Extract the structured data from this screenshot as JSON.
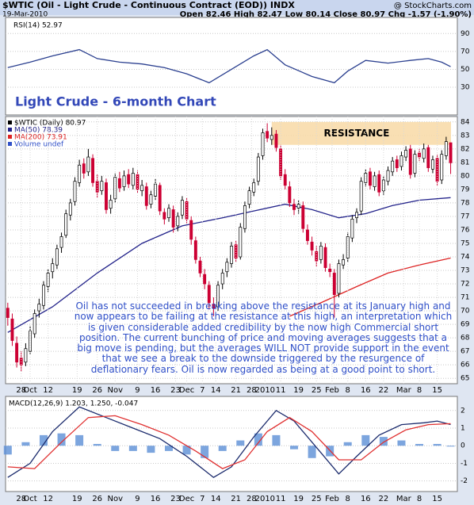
{
  "header": {
    "symbol": "$WTIC (Oil - Light Crude - Continuous Contract (EOD)) INDX",
    "source": "@ StockCharts.com",
    "date": "19-Mar-2010",
    "quote": "Open 82.46 High 82.47 Low 80.14 Close 80.97 Chg -1.57 (-1.90%)",
    "chart_title": "Light Crude - 6-month Chart",
    "commentary": "Oil has not succeeded in breaking above the resistance at its January high and now appears to be failing at the resistance at this high, an interpretation which is given considerable added credibility by the now high Commercial short position. The current bunching of price and moving averages suggests that a big move is pending, but the averages WILL NOT provide support in the event that we see a break to the downside triggered by the resurgence of deflationary fears. Oil is now regarded as being at a good point to short."
  },
  "chart_data": [
    {
      "type": "line",
      "title": "RSI(14) 52.97",
      "xlim": [
        -0.5,
        100.5
      ],
      "ylim": [
        -1,
        108
      ],
      "yticks": [
        30,
        50,
        70,
        90
      ],
      "grid": true,
      "series": [
        {
          "color": "#2a3f8f",
          "x": [
            0,
            5,
            10,
            16,
            20,
            25,
            30,
            35,
            40,
            45,
            50,
            55,
            58,
            62,
            68,
            73,
            76,
            80,
            85,
            90,
            94,
            97,
            99
          ],
          "values": [
            52,
            58,
            65,
            72,
            62,
            58,
            56,
            52,
            45,
            35,
            50,
            65,
            72,
            55,
            42,
            35,
            48,
            60,
            57,
            60,
            62,
            58,
            52.97
          ]
        }
      ]
    },
    {
      "type": "candlestick",
      "xlim": [
        -0.5,
        100.5
      ],
      "ylim": [
        64.6,
        84.4
      ],
      "yticks": [
        65,
        66,
        67,
        68,
        69,
        70,
        71,
        72,
        73,
        74,
        75,
        76,
        77,
        78,
        79,
        80,
        81,
        82,
        83,
        84
      ],
      "grid": true,
      "xticks": [
        {
          "value": 3,
          "label": "28"
        },
        {
          "value": 5,
          "label": "Oct"
        },
        {
          "value": 9,
          "label": "12"
        },
        {
          "value": 15.5,
          "label": "19"
        },
        {
          "value": 20,
          "label": "26"
        },
        {
          "value": 24,
          "label": "Nov"
        },
        {
          "value": 29,
          "label": "9"
        },
        {
          "value": 33,
          "label": "16"
        },
        {
          "value": 37.5,
          "label": "23"
        },
        {
          "value": 40,
          "label": "Dec"
        },
        {
          "value": 43.5,
          "label": "7"
        },
        {
          "value": 46.5,
          "label": "14"
        },
        {
          "value": 51,
          "label": "21"
        },
        {
          "value": 54.5,
          "label": "28"
        },
        {
          "value": 57.5,
          "label": "2010"
        },
        {
          "value": 61,
          "label": "11"
        },
        {
          "value": 65,
          "label": "19"
        },
        {
          "value": 69,
          "label": "25"
        },
        {
          "value": 72.5,
          "label": "Feb"
        },
        {
          "value": 76,
          "label": "8"
        },
        {
          "value": 80,
          "label": "16"
        },
        {
          "value": 84,
          "label": "22"
        },
        {
          "value": 88.5,
          "label": "Mar"
        },
        {
          "value": 92,
          "label": "8"
        },
        {
          "value": 96,
          "label": "15"
        }
      ],
      "candle_name": "$WTIC (Daily) 80.97",
      "up_color": "#000000",
      "down_color": "#cc0033",
      "volume_label": "Volume undef",
      "resistance": {
        "label": "RESISTANCE",
        "start": 59,
        "low": 82.3,
        "high": 84
      },
      "candles": [
        [
          70.2,
          70.6,
          68.9,
          69.5
        ],
        [
          69.4,
          69.8,
          67.4,
          67.8
        ],
        [
          67.6,
          68.1,
          65.8,
          66.2
        ],
        [
          66.5,
          67.0,
          65.5,
          66.0
        ],
        [
          66.2,
          67.6,
          65.9,
          67.2
        ],
        [
          67.0,
          68.9,
          66.8,
          68.5
        ],
        [
          68.3,
          70.1,
          68.0,
          69.8
        ],
        [
          70.0,
          70.9,
          69.5,
          70.5
        ],
        [
          70.4,
          72.2,
          70.1,
          71.9
        ],
        [
          71.8,
          73.1,
          71.4,
          72.8
        ],
        [
          72.9,
          73.9,
          72.4,
          73.5
        ],
        [
          73.4,
          74.9,
          73.1,
          74.6
        ],
        [
          74.7,
          75.8,
          74.3,
          75.5
        ],
        [
          75.6,
          77.5,
          75.4,
          77.2
        ],
        [
          77.1,
          78.3,
          76.7,
          78.0
        ],
        [
          78.1,
          79.9,
          77.8,
          79.6
        ],
        [
          79.5,
          81.2,
          79.2,
          80.8
        ],
        [
          80.9,
          81.3,
          79.8,
          80.2
        ],
        [
          80.3,
          82.0,
          80.0,
          81.4
        ],
        [
          81.3,
          81.6,
          79.2,
          79.5
        ],
        [
          79.6,
          80.1,
          78.4,
          78.8
        ],
        [
          78.9,
          80.0,
          78.6,
          79.6
        ],
        [
          79.5,
          79.8,
          77.2,
          77.5
        ],
        [
          77.6,
          78.6,
          77.2,
          78.2
        ],
        [
          78.3,
          80.2,
          78.0,
          79.9
        ],
        [
          79.8,
          80.3,
          78.8,
          79.1
        ],
        [
          79.2,
          80.4,
          78.9,
          80.0
        ],
        [
          80.1,
          80.5,
          79.1,
          79.4
        ],
        [
          79.3,
          80.6,
          79.0,
          80.2
        ],
        [
          80.1,
          80.4,
          78.7,
          79.0
        ],
        [
          78.9,
          79.7,
          78.5,
          79.3
        ],
        [
          79.2,
          79.5,
          77.5,
          77.8
        ],
        [
          77.9,
          78.9,
          77.6,
          78.6
        ],
        [
          78.5,
          79.8,
          78.2,
          79.4
        ],
        [
          79.3,
          79.5,
          77.1,
          77.4
        ],
        [
          77.3,
          77.6,
          76.4,
          76.8
        ],
        [
          76.9,
          77.9,
          76.6,
          77.6
        ],
        [
          77.5,
          77.8,
          75.8,
          76.2
        ],
        [
          76.3,
          77.3,
          75.9,
          77.0
        ],
        [
          77.1,
          78.5,
          76.8,
          78.2
        ],
        [
          78.1,
          78.4,
          76.5,
          76.8
        ],
        [
          76.7,
          77.0,
          74.9,
          75.3
        ],
        [
          75.2,
          75.5,
          73.5,
          73.8
        ],
        [
          73.7,
          74.0,
          72.5,
          72.8
        ],
        [
          72.7,
          73.1,
          71.6,
          72.0
        ],
        [
          71.9,
          72.2,
          70.1,
          70.6
        ],
        [
          70.5,
          71.0,
          69.6,
          70.2
        ],
        [
          70.3,
          72.2,
          70.0,
          71.9
        ],
        [
          72.0,
          73.1,
          71.6,
          72.8
        ],
        [
          72.9,
          73.9,
          72.5,
          73.6
        ],
        [
          73.5,
          75.1,
          73.2,
          74.8
        ],
        [
          74.9,
          75.2,
          73.6,
          73.9
        ],
        [
          74.0,
          76.5,
          73.8,
          76.2
        ],
        [
          76.1,
          78.1,
          75.8,
          77.8
        ],
        [
          77.9,
          79.2,
          77.6,
          78.9
        ],
        [
          78.8,
          79.8,
          78.5,
          79.5
        ],
        [
          79.6,
          81.7,
          79.3,
          81.4
        ],
        [
          81.5,
          83.5,
          81.2,
          83.2
        ],
        [
          83.3,
          83.9,
          82.5,
          82.8
        ],
        [
          82.7,
          83.6,
          82.3,
          83.0
        ],
        [
          83.1,
          83.4,
          81.8,
          82.1
        ],
        [
          82.0,
          82.3,
          79.7,
          80.0
        ],
        [
          80.1,
          80.5,
          79.0,
          79.3
        ],
        [
          79.2,
          79.6,
          77.7,
          78.0
        ],
        [
          77.9,
          78.3,
          77.1,
          77.5
        ],
        [
          77.6,
          78.2,
          77.2,
          77.9
        ],
        [
          77.8,
          78.1,
          75.8,
          76.1
        ],
        [
          76.0,
          76.4,
          74.9,
          75.2
        ],
        [
          75.1,
          75.5,
          74.1,
          74.5
        ],
        [
          74.4,
          74.8,
          73.3,
          73.7
        ],
        [
          73.8,
          75.1,
          73.5,
          74.8
        ],
        [
          74.7,
          75.0,
          72.9,
          73.2
        ],
        [
          73.1,
          73.5,
          72.5,
          72.9
        ],
        [
          72.8,
          73.1,
          69.5,
          71.2
        ],
        [
          71.3,
          73.8,
          71.0,
          73.5
        ],
        [
          73.4,
          74.2,
          73.1,
          73.8
        ],
        [
          73.9,
          75.8,
          73.6,
          75.5
        ],
        [
          75.4,
          77.1,
          75.1,
          76.8
        ],
        [
          76.9,
          77.6,
          76.5,
          77.3
        ],
        [
          77.4,
          79.9,
          77.1,
          79.6
        ],
        [
          79.5,
          80.5,
          79.2,
          80.2
        ],
        [
          80.3,
          80.6,
          79.0,
          79.3
        ],
        [
          79.2,
          80.3,
          78.9,
          80.0
        ],
        [
          80.1,
          80.4,
          78.5,
          78.8
        ],
        [
          78.9,
          80.0,
          78.6,
          79.7
        ],
        [
          79.6,
          80.7,
          79.3,
          80.4
        ],
        [
          80.3,
          81.4,
          80.0,
          81.1
        ],
        [
          81.2,
          81.5,
          80.3,
          80.6
        ],
        [
          80.7,
          81.8,
          80.4,
          81.5
        ],
        [
          81.4,
          82.2,
          81.1,
          81.9
        ],
        [
          82.0,
          82.3,
          79.8,
          80.1
        ],
        [
          80.2,
          81.9,
          79.9,
          81.6
        ],
        [
          81.7,
          82.0,
          81.1,
          81.4
        ],
        [
          81.3,
          82.4,
          81.0,
          82.0
        ],
        [
          82.1,
          82.3,
          80.3,
          80.6
        ],
        [
          80.5,
          81.5,
          80.2,
          81.2
        ],
        [
          81.3,
          81.6,
          79.3,
          79.6
        ],
        [
          79.7,
          81.9,
          79.4,
          81.6
        ],
        [
          81.5,
          82.9,
          81.2,
          82.54
        ],
        [
          82.46,
          82.47,
          80.14,
          80.97
        ]
      ],
      "series": [
        {
          "name": "MA(50) 78.39",
          "color": "#22228a",
          "x": [
            0,
            10,
            20,
            30,
            39,
            48,
            55,
            62,
            68,
            74,
            80,
            86,
            92,
            99
          ],
          "values": [
            68.4,
            70.3,
            72.8,
            75.0,
            76.3,
            76.9,
            77.4,
            77.9,
            77.5,
            76.9,
            77.2,
            77.8,
            78.2,
            78.39
          ]
        },
        {
          "name": "MA(200) 73.91",
          "color": "#dd2222",
          "x": [
            63,
            70,
            78,
            85,
            92,
            99
          ],
          "values": [
            69.6,
            70.6,
            71.8,
            72.8,
            73.4,
            73.91
          ]
        }
      ]
    },
    {
      "type": "macd",
      "title": "MACD(12,26,9) 1.203, 1.250, -0.047",
      "xlim": [
        -0.5,
        100.5
      ],
      "ylim": [
        -2.6,
        2.8
      ],
      "yticks": [
        -2,
        -1,
        0,
        1,
        2
      ],
      "grid": true,
      "hist_color": "#5b8fd6",
      "series": [
        {
          "color": "#1a2a6c",
          "x": [
            0,
            5,
            10,
            16,
            22,
            28,
            34,
            40,
            46,
            50,
            55,
            60,
            64,
            70,
            74,
            78,
            83,
            88,
            93,
            96,
            99
          ],
          "values": [
            -1.8,
            -1.0,
            0.8,
            2.2,
            1.6,
            1.0,
            0.4,
            -0.6,
            -1.8,
            -1.2,
            0.5,
            2.0,
            1.4,
            -0.4,
            -1.6,
            -0.6,
            0.6,
            1.2,
            1.3,
            1.4,
            1.203
          ]
        },
        {
          "color": "#e03030",
          "x": [
            0,
            6,
            12,
            18,
            24,
            30,
            36,
            42,
            48,
            53,
            58,
            63,
            68,
            74,
            79,
            84,
            89,
            94,
            99
          ],
          "values": [
            -1.2,
            -1.3,
            0.2,
            1.6,
            1.7,
            1.2,
            0.6,
            -0.3,
            -1.3,
            -0.8,
            0.8,
            1.6,
            0.8,
            -0.8,
            -0.8,
            0.2,
            0.9,
            1.2,
            1.25
          ]
        }
      ],
      "histogram": {
        "x": [
          0,
          4,
          8,
          12,
          16,
          20,
          24,
          28,
          32,
          36,
          40,
          44,
          48,
          52,
          56,
          60,
          64,
          68,
          72,
          76,
          80,
          84,
          88,
          92,
          96,
          99
        ],
        "values": [
          -0.5,
          0.2,
          0.6,
          0.7,
          0.6,
          0.1,
          -0.3,
          -0.3,
          -0.4,
          -0.3,
          -0.5,
          -0.7,
          -0.3,
          0.3,
          0.7,
          0.6,
          -0.2,
          -0.7,
          -0.6,
          0.2,
          0.6,
          0.5,
          0.3,
          0.1,
          0.1,
          -0.047
        ]
      }
    }
  ]
}
